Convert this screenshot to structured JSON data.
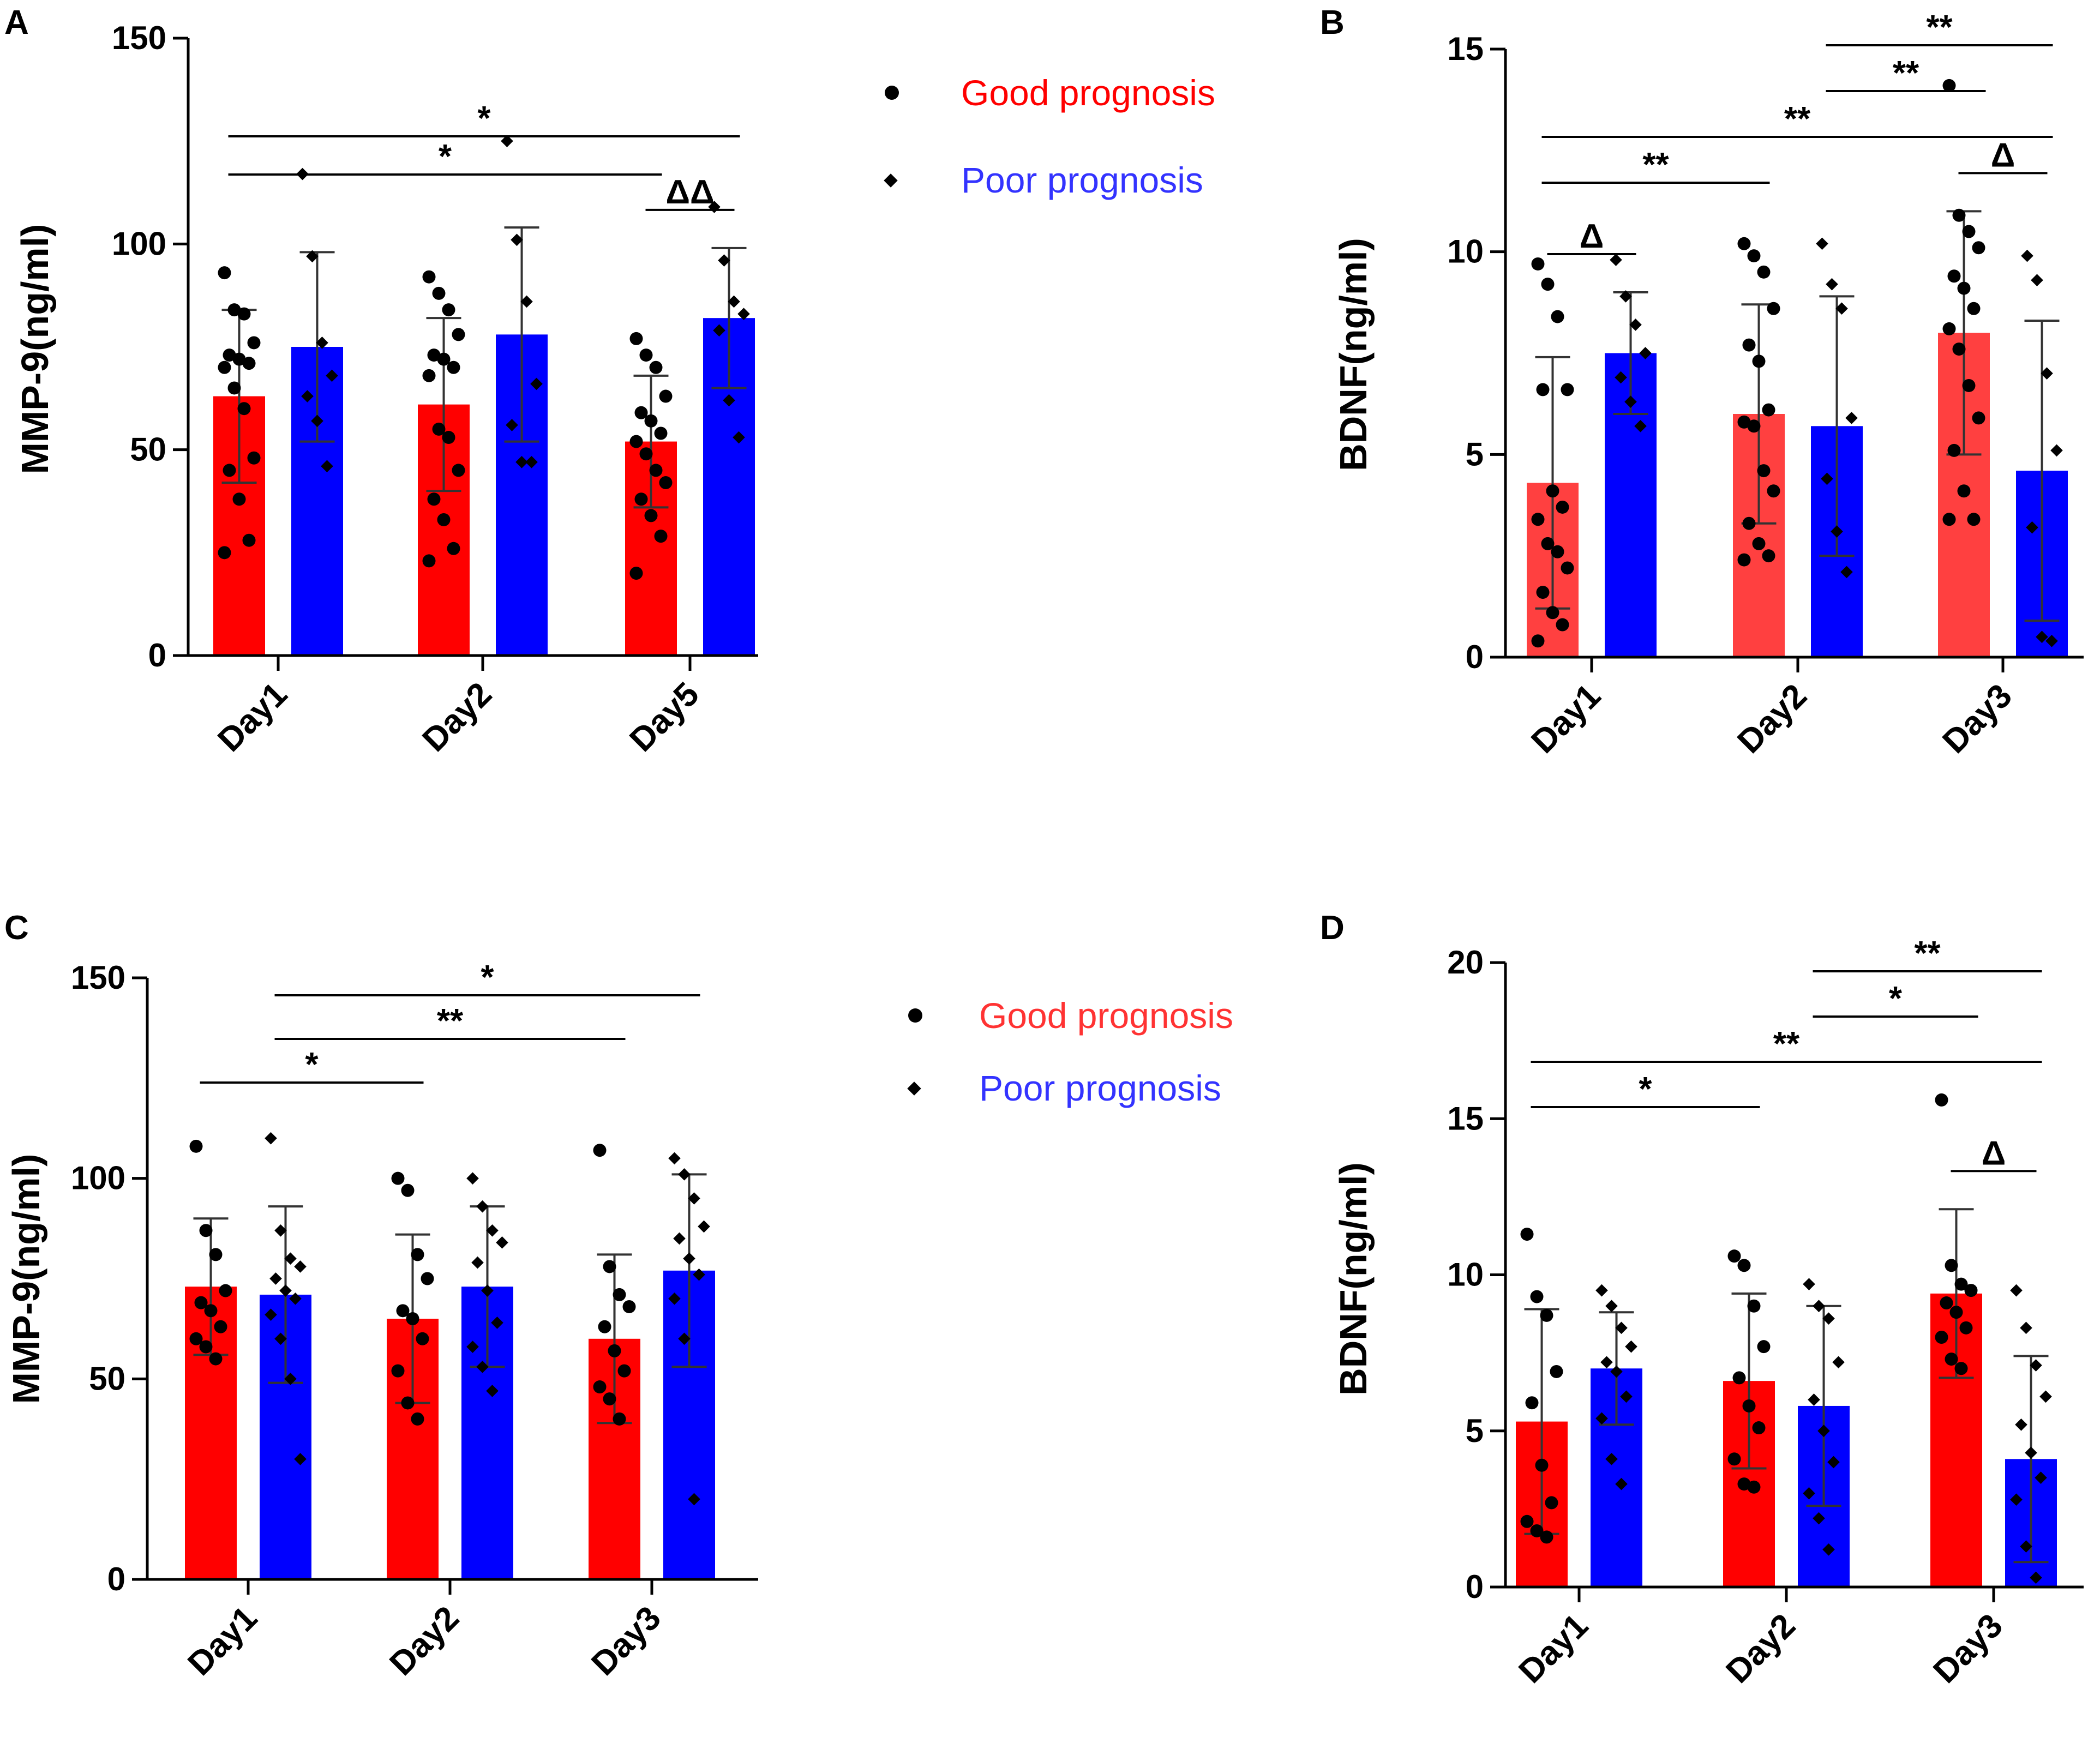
{
  "colors": {
    "good": "#FF0000",
    "good_light": "#FF4040",
    "poor": "#0000FF",
    "ink": "#000000"
  },
  "chart_data": [
    {
      "panel": "A",
      "type": "bar",
      "ylabel": "MMP-9(ng/ml)",
      "ylim": [
        0,
        150
      ],
      "yticks": [
        "0",
        "50",
        "100",
        "150"
      ],
      "categories": [
        "Day1",
        "Day2",
        "Day5"
      ],
      "series": [
        {
          "name": "Good prognosis",
          "values": [
            63,
            61,
            52
          ],
          "sd": [
            21,
            21,
            16
          ],
          "points": [
            [
              93,
              84,
              83,
              76,
              73,
              72,
              71,
              70,
              65,
              60,
              48,
              45,
              38,
              28,
              25
            ],
            [
              92,
              88,
              84,
              78,
              73,
              72,
              70,
              68,
              55,
              53,
              45,
              38,
              33,
              26,
              23
            ],
            [
              77,
              73,
              70,
              63,
              59,
              57,
              54,
              52,
              49,
              45,
              42,
              38,
              34,
              29,
              20
            ]
          ]
        },
        {
          "name": "Poor prognosis",
          "values": [
            75,
            78,
            82
          ],
          "sd": [
            23,
            26,
            17
          ],
          "points": [
            [
              117,
              97,
              76,
              68,
              63,
              57,
              46
            ],
            [
              125,
              101,
              86,
              66,
              56,
              47,
              47
            ],
            [
              109,
              96,
              86,
              83,
              79,
              62,
              53
            ]
          ]
        }
      ],
      "brackets": [
        {
          "from": 0,
          "to": 2,
          "text": "*",
          "level": 2
        },
        {
          "from": 0,
          "to": 2,
          "text": "*",
          "level": 1
        },
        {
          "from": 2,
          "to": 2,
          "text": "ΔΔ",
          "level": 0,
          "within": true
        }
      ]
    },
    {
      "panel": "B",
      "type": "bar",
      "ylabel": "BDNF(ng/ml)",
      "ylim": [
        0,
        15
      ],
      "yticks": [
        "0",
        "5",
        "10",
        "15"
      ],
      "categories": [
        "Day1",
        "Day2",
        "Day3"
      ],
      "series": [
        {
          "name": "Good prognosis",
          "values": [
            4.3,
            6.0,
            8.0
          ],
          "sd": [
            3.1,
            2.7,
            3.0
          ],
          "points": [
            [
              9.7,
              9.2,
              8.4,
              6.6,
              6.6,
              4.1,
              3.7,
              3.4,
              2.8,
              2.6,
              2.2,
              1.6,
              1.1,
              0.8,
              0.4
            ],
            [
              10.2,
              9.9,
              9.5,
              8.6,
              7.7,
              7.3,
              6.1,
              5.8,
              5.7,
              4.6,
              4.1,
              3.3,
              2.8,
              2.5,
              2.4
            ],
            [
              14.1,
              10.9,
              10.5,
              10.1,
              9.4,
              9.1,
              8.6,
              8.1,
              7.6,
              6.7,
              5.9,
              5.1,
              4.1,
              3.4,
              3.4
            ]
          ]
        },
        {
          "name": "Poor prognosis",
          "values": [
            7.5,
            5.7,
            4.6
          ],
          "sd": [
            1.5,
            3.2,
            3.7
          ],
          "points": [
            [
              9.8,
              8.9,
              8.2,
              7.5,
              6.9,
              6.3,
              5.7
            ],
            [
              10.2,
              9.2,
              8.6,
              5.9,
              4.4,
              3.1,
              2.1
            ],
            [
              9.9,
              9.3,
              7.0,
              5.1,
              3.2,
              0.5,
              0.4
            ]
          ]
        }
      ],
      "brackets": [
        {
          "from": 1,
          "to": 2,
          "text": "**",
          "level": 4
        },
        {
          "from": 1,
          "to": 1.5,
          "text": "**",
          "level": 3
        },
        {
          "from": 0,
          "to": 2,
          "text": "**",
          "level": 2
        },
        {
          "from": 0,
          "to": 1,
          "text": "**",
          "level": 1
        },
        {
          "from": 0,
          "to": 0,
          "text": "Δ",
          "level": 0,
          "within": true
        },
        {
          "from": 2,
          "to": 2,
          "text": "Δ",
          "level": 0,
          "within": true
        }
      ]
    },
    {
      "panel": "C",
      "type": "bar",
      "ylabel": "MMP-9(ng/ml)",
      "ylim": [
        0,
        150
      ],
      "yticks": [
        "0",
        "50",
        "100",
        "150"
      ],
      "categories": [
        "Day1",
        "Day2",
        "Day3"
      ],
      "series": [
        {
          "name": "Good prognosis",
          "values": [
            73,
            65,
            60
          ],
          "sd": [
            17,
            21,
            21
          ],
          "points": [
            [
              108,
              87,
              81,
              72,
              69,
              67,
              63,
              60,
              58,
              55
            ],
            [
              100,
              97,
              81,
              75,
              67,
              65,
              60,
              52,
              44,
              40
            ],
            [
              107,
              78,
              71,
              68,
              63,
              57,
              52,
              48,
              45,
              40
            ]
          ]
        },
        {
          "name": "Poor prognosis",
          "values": [
            71,
            73,
            77
          ],
          "sd": [
            22,
            20,
            24
          ],
          "points": [
            [
              110,
              87,
              80,
              78,
              75,
              72,
              70,
              66,
              60,
              50,
              30
            ],
            [
              100,
              93,
              87,
              84,
              79,
              72,
              64,
              58,
              53,
              47
            ],
            [
              105,
              101,
              95,
              88,
              85,
              80,
              76,
              70,
              60,
              20
            ]
          ]
        }
      ],
      "brackets": [
        {
          "from": 0,
          "to": 2,
          "text": "*",
          "level": 3
        },
        {
          "from": 0,
          "to": 2,
          "text": "**",
          "level": 2
        },
        {
          "from": 0,
          "to": 1,
          "text": "*",
          "level": 1
        }
      ]
    },
    {
      "panel": "D",
      "type": "bar",
      "ylabel": "BDNF(ng/ml)",
      "ylim": [
        0,
        20
      ],
      "yticks": [
        "0",
        "5",
        "10",
        "15",
        "20"
      ],
      "categories": [
        "Day1",
        "Day2",
        "Day3"
      ],
      "series": [
        {
          "name": "Good prognosis",
          "values": [
            5.3,
            6.6,
            9.4
          ],
          "sd": [
            3.6,
            2.8,
            2.7
          ],
          "points": [
            [
              11.3,
              9.3,
              8.7,
              6.9,
              5.9,
              3.9,
              2.7,
              2.1,
              1.8,
              1.6
            ],
            [
              10.6,
              10.3,
              9.0,
              7.7,
              6.7,
              5.8,
              5.1,
              4.1,
              3.3,
              3.2
            ],
            [
              15.6,
              10.3,
              9.7,
              9.5,
              9.1,
              8.8,
              8.3,
              8.0,
              7.3,
              7.0
            ]
          ]
        },
        {
          "name": "Poor prognosis",
          "values": [
            7.0,
            5.8,
            4.1
          ],
          "sd": [
            1.8,
            3.2,
            3.3
          ],
          "points": [
            [
              9.5,
              9.0,
              8.3,
              7.7,
              7.2,
              6.9,
              6.1,
              5.4,
              4.1,
              3.3
            ],
            [
              9.7,
              9.0,
              8.6,
              7.2,
              6.0,
              5.0,
              4.0,
              3.0,
              2.2,
              1.2
            ],
            [
              9.5,
              8.3,
              7.1,
              6.1,
              5.2,
              4.3,
              3.5,
              2.8,
              1.3,
              0.3
            ]
          ]
        }
      ],
      "brackets": [
        {
          "from": 1,
          "to": 2,
          "text": "**",
          "level": 4
        },
        {
          "from": 1,
          "to": 1.5,
          "text": "*",
          "level": 3
        },
        {
          "from": 0,
          "to": 2,
          "text": "**",
          "level": 2
        },
        {
          "from": 0,
          "to": 1,
          "text": "*",
          "level": 1
        },
        {
          "from": 2,
          "to": 2,
          "text": "Δ",
          "level": 0,
          "within": true
        }
      ]
    }
  ],
  "legends": [
    {
      "good": "Good prognosis",
      "poor": "Poor prognosis"
    },
    {
      "good": "Good prognosis",
      "poor": "Poor prognosis"
    }
  ]
}
